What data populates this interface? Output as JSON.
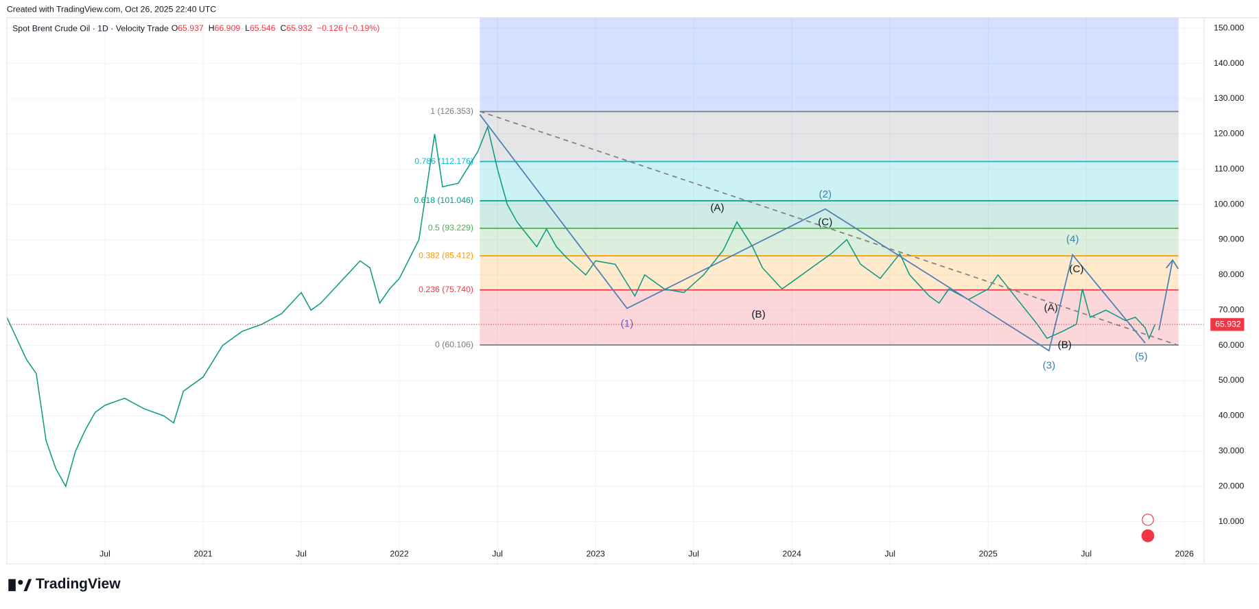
{
  "header": "Created with TradingView.com, Oct 26, 2025 22:40 UTC",
  "footer": "TradingView",
  "chart_data": {
    "type": "line",
    "symbol": "Spot Brent Crude Oil · 1D · Velocity Trade",
    "ohlc": [
      {
        "label": "O",
        "value": 65.937
      },
      {
        "label": "H",
        "value": 66.909
      },
      {
        "label": "L",
        "value": 65.546
      },
      {
        "label": "C",
        "value": 65.932
      }
    ],
    "change": "−0.126 (−0.19%)",
    "last_price": 65.932,
    "xlim": [
      2020.0,
      2026.1
    ],
    "ylim": [
      -2,
      153
    ],
    "grid": true,
    "xticks": [
      {
        "value": 2020.5,
        "label": "Jul"
      },
      2021,
      {
        "value": 2021.5,
        "label": "Jul"
      },
      2022,
      {
        "value": 2022.5,
        "label": "Jul"
      },
      2023,
      {
        "value": 2023.5,
        "label": "Jul"
      },
      2024,
      {
        "value": 2024.5,
        "label": "Jul"
      },
      2025,
      {
        "value": 2025.5,
        "label": "Jul"
      },
      2026
    ],
    "yticks": [
      {
        "value": 10,
        "label": "10.000"
      },
      {
        "value": 20,
        "label": "20.000"
      },
      {
        "value": 30,
        "label": "30.000"
      },
      {
        "value": 40,
        "label": "40.000"
      },
      {
        "value": 50,
        "label": "50.000"
      },
      {
        "value": 60,
        "label": "60.000"
      },
      {
        "value": 70,
        "label": "70.000"
      },
      {
        "value": 80,
        "label": "80.000"
      },
      {
        "value": 90,
        "label": "90.000"
      },
      {
        "value": 100,
        "label": "100.000"
      },
      {
        "value": 110,
        "label": "110.000"
      },
      {
        "value": 120,
        "label": "120.000"
      },
      {
        "value": 130,
        "label": "130.000"
      },
      {
        "value": 140,
        "label": "140.000"
      },
      {
        "value": 150,
        "label": "150.000"
      }
    ],
    "series": [
      {
        "name": "Spot Brent Crude Oil",
        "color": "#089981",
        "x": [
          2020.0,
          2020.05,
          2020.1,
          2020.15,
          2020.2,
          2020.25,
          2020.3,
          2020.35,
          2020.4,
          2020.45,
          2020.5,
          2020.6,
          2020.7,
          2020.8,
          2020.85,
          2020.9,
          2021.0,
          2021.1,
          2021.2,
          2021.3,
          2021.4,
          2021.5,
          2021.55,
          2021.6,
          2021.7,
          2021.8,
          2021.85,
          2021.9,
          2021.95,
          2022.0,
          2022.1,
          2022.18,
          2022.22,
          2022.3,
          2022.4,
          2022.45,
          2022.5,
          2022.55,
          2022.6,
          2022.7,
          2022.75,
          2022.8,
          2022.85,
          2022.95,
          2023.0,
          2023.1,
          2023.2,
          2023.25,
          2023.35,
          2023.45,
          2023.55,
          2023.65,
          2023.72,
          2023.8,
          2023.85,
          2023.95,
          2024.0,
          2024.1,
          2024.2,
          2024.28,
          2024.35,
          2024.45,
          2024.55,
          2024.6,
          2024.7,
          2024.75,
          2024.8,
          2024.9,
          2025.0,
          2025.05,
          2025.15,
          2025.25,
          2025.3,
          2025.38,
          2025.45,
          2025.48,
          2025.52,
          2025.6,
          2025.7,
          2025.75,
          2025.8,
          2025.82,
          2025.85
        ],
        "values": [
          68,
          62,
          56,
          52,
          33,
          25,
          20,
          30,
          36,
          41,
          43,
          45,
          42,
          40,
          38,
          47,
          51,
          60,
          64,
          66,
          69,
          75,
          70,
          72,
          78,
          84,
          82,
          72,
          76,
          79,
          90,
          120,
          105,
          106,
          115,
          122,
          110,
          100,
          95,
          88,
          93,
          88,
          85,
          80,
          84,
          83,
          74,
          80,
          76,
          75,
          80,
          87,
          95,
          88,
          82,
          76,
          78,
          82,
          86,
          90,
          83,
          79,
          86,
          80,
          74,
          72,
          76,
          73,
          76,
          80,
          73,
          66,
          62,
          64,
          66,
          76,
          68,
          70,
          67,
          68,
          65,
          62,
          65.932
        ]
      }
    ],
    "fib_x": [
      2022.41,
      2025.97
    ],
    "top_band_color": "#2962ff",
    "fib_levels": [
      {
        "label": "1 (126.353)",
        "price": 126.353,
        "color": "#787b86",
        "band_color": "#787b86"
      },
      {
        "label": "0.786 (112.176)",
        "price": 112.176,
        "color": "#00bcd4",
        "band_color": "#00bcd4"
      },
      {
        "label": "0.618 (101.046)",
        "price": 101.046,
        "color": "#089981",
        "band_color": "#089981"
      },
      {
        "label": "0.5 (93.229)",
        "price": 93.229,
        "color": "#4caf50",
        "band_color": "#4caf50"
      },
      {
        "label": "0.382 (85.412)",
        "price": 85.412,
        "color": "#ff9800",
        "band_color": "#ff9800"
      },
      {
        "label": "0.236 (75.740)",
        "price": 75.74,
        "color": "#f23645",
        "band_color": "#f23645"
      },
      {
        "label": "0 (60.106)",
        "price": 60.106,
        "color": "#787b86"
      }
    ],
    "wave_line": {
      "color": "#4a7fb5",
      "x": [
        2022.41,
        2023.16,
        2024.17,
        2025.31,
        2025.43,
        2025.8
      ],
      "y": [
        125.5,
        70.5,
        98.7,
        58.5,
        85.7,
        60.7
      ]
    },
    "trend_line": {
      "color": "#808080",
      "x": [
        2022.41,
        2025.97
      ],
      "y": [
        126.4,
        60
      ]
    },
    "arrow": {
      "color": "#4a7fb5",
      "x": [
        2025.87,
        2025.94
      ],
      "y": [
        64.3,
        84.2
      ]
    },
    "annotations": [
      {
        "text": "(1)",
        "x": 2023.16,
        "y": 66.1,
        "color": "#6a5acd"
      },
      {
        "text": "(A)",
        "x": 2023.62,
        "y": 98.9,
        "color": "#131722"
      },
      {
        "text": "(B)",
        "x": 2023.83,
        "y": 68.7,
        "color": "#131722"
      },
      {
        "text": "(2)",
        "x": 2024.17,
        "y": 102.7,
        "color": "#3b82b0"
      },
      {
        "text": "(C)",
        "x": 2024.17,
        "y": 94.9,
        "color": "#131722"
      },
      {
        "text": "(3)",
        "x": 2025.31,
        "y": 54.2,
        "color": "#3b82b0"
      },
      {
        "text": "(A)",
        "x": 2025.32,
        "y": 70.5,
        "color": "#131722"
      },
      {
        "text": "(B)",
        "x": 2025.39,
        "y": 60.0,
        "color": "#131722"
      },
      {
        "text": "(4)",
        "x": 2025.43,
        "y": 90.0,
        "color": "#3b82b0"
      },
      {
        "text": "(C)",
        "x": 2025.45,
        "y": 81.5,
        "color": "#131722"
      },
      {
        "text": "(5)",
        "x": 2025.78,
        "y": 56.7,
        "color": "#3b82b0"
      }
    ]
  }
}
